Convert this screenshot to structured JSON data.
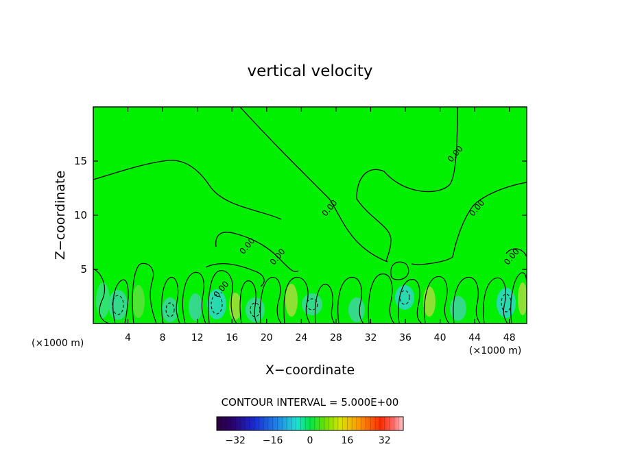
{
  "chart_data": {
    "type": "heatmap",
    "title": "vertical velocity",
    "xlabel": "X−coordinate",
    "ylabel": "Z−coordinate",
    "x_unit_left": "(×1000 m)",
    "x_unit_right": "(×1000 m)",
    "xlim": [
      0,
      50
    ],
    "ylim": [
      0,
      20
    ],
    "x_ticks": [
      4,
      8,
      12,
      16,
      20,
      24,
      28,
      32,
      36,
      40,
      44,
      48
    ],
    "y_ticks": [
      5,
      10,
      15
    ],
    "contour_interval_text": "CONTOUR INTERVAL = 5.000E+00",
    "contour_labels": [
      {
        "text": "0.00",
        "x": 27.5,
        "y": 10.5
      },
      {
        "text": "0.00",
        "x": 42.0,
        "y": 15.5
      },
      {
        "text": "0.00",
        "x": 44.5,
        "y": 10.5
      },
      {
        "text": "0.00",
        "x": 18.0,
        "y": 7.0
      },
      {
        "text": "0.00",
        "x": 21.5,
        "y": 6.0
      },
      {
        "text": "0.00",
        "x": 15.0,
        "y": 3.0
      },
      {
        "text": "0.00",
        "x": 48.5,
        "y": 6.0
      }
    ],
    "colorbar": {
      "range": [
        -40,
        40
      ],
      "ticks": [
        "−32",
        "−16",
        "0",
        "16",
        "32"
      ],
      "tick_values": [
        -32,
        -16,
        0,
        16,
        32
      ]
    },
    "background_color": "#00f000",
    "contour_color": "#000000"
  }
}
